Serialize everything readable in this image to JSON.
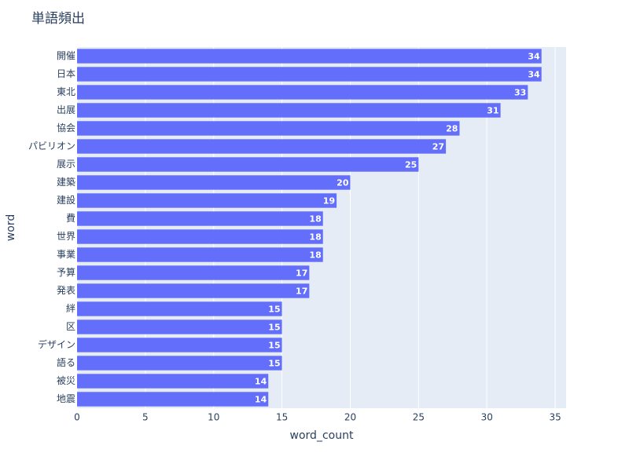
{
  "chart_data": {
    "type": "bar",
    "orientation": "horizontal",
    "title": "単語頻出",
    "x_label": "word_count",
    "y_label": "word",
    "categories": [
      "開催",
      "日本",
      "東北",
      "出展",
      "協会",
      "パビリオン",
      "展示",
      "建築",
      "建設",
      "費",
      "世界",
      "事業",
      "予算",
      "発表",
      "絆",
      "区",
      "デザイン",
      "語る",
      "被災",
      "地震"
    ],
    "values": [
      34,
      34,
      33,
      31,
      28,
      27,
      25,
      20,
      19,
      18,
      18,
      18,
      17,
      17,
      15,
      15,
      15,
      15,
      14,
      14
    ],
    "color": "#636efa",
    "xlim": [
      0,
      35.8
    ],
    "xticks": [
      0,
      5,
      10,
      15,
      20,
      25,
      30,
      35
    ],
    "grid": true
  }
}
